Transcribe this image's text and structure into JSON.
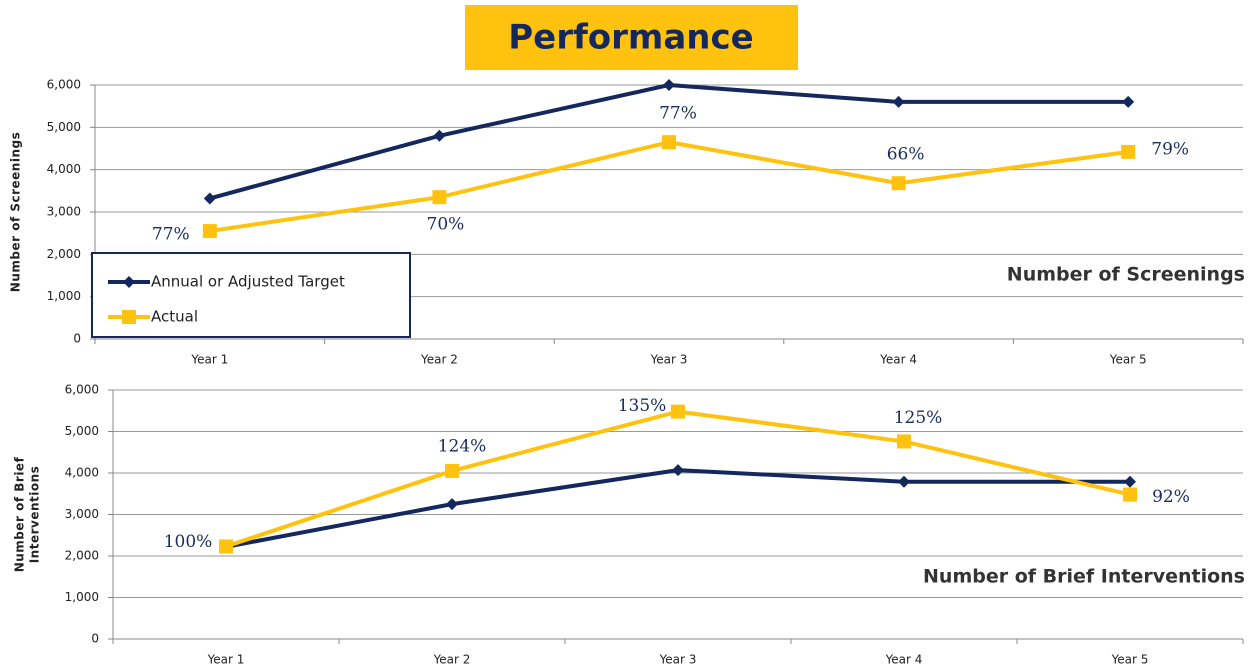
{
  "title": "Performance",
  "chart_data": [
    {
      "type": "line",
      "title": "Number of Screenings",
      "ylabel": "Number of  Screenings",
      "categories": [
        "Year 1",
        "Year 2",
        "Year 3",
        "Year 4",
        "Year 5"
      ],
      "series": [
        {
          "name": "Annual or Adjusted Target",
          "color": "#14285e",
          "marker": "diamond",
          "values": [
            3320,
            4800,
            6000,
            5600,
            5600
          ]
        },
        {
          "name": "Actual",
          "color": "#ffc20e",
          "marker": "square",
          "values": [
            2550,
            3350,
            4650,
            3680,
            4420
          ],
          "annotations": [
            "77%",
            "70%",
            "77%",
            "66%",
            "79%"
          ]
        }
      ],
      "ylim": [
        0,
        6000
      ],
      "yticks": [
        0,
        {
          "value": 1000,
          "label": "1,000"
        },
        {
          "value": 2000,
          "label": "2,000"
        },
        {
          "value": 3000,
          "label": "3,000"
        },
        {
          "value": 4000,
          "label": "4,000"
        },
        {
          "value": 5000,
          "label": "5,000"
        },
        {
          "value": 6000,
          "label": "6,000"
        }
      ],
      "grid": true,
      "legend": "lower left"
    },
    {
      "type": "line",
      "title": "Number of Brief Interventions",
      "ylabel": [
        "Number of  Brief",
        "Interventions"
      ],
      "categories": [
        "Year 1",
        "Year 2",
        "Year 3",
        "Year 4",
        "Year 5"
      ],
      "series": [
        {
          "color": "#14285e",
          "marker": "diamond",
          "values": [
            2220,
            3250,
            4070,
            3790,
            3790
          ]
        },
        {
          "color": "#ffc20e",
          "marker": "square",
          "values": [
            2230,
            4050,
            5480,
            4760,
            3480
          ],
          "annotations": [
            "100%",
            "124%",
            "135%",
            "125%",
            "92%"
          ]
        }
      ],
      "ylim": [
        0,
        6000
      ],
      "yticks": [
        0,
        {
          "value": 1000,
          "label": "1,000"
        },
        {
          "value": 2000,
          "label": "2,000"
        },
        {
          "value": 3000,
          "label": "3,000"
        },
        {
          "value": 4000,
          "label": "4,000"
        },
        {
          "value": 5000,
          "label": "5,000"
        },
        {
          "value": 6000,
          "label": "6,000"
        }
      ],
      "grid": true
    }
  ]
}
